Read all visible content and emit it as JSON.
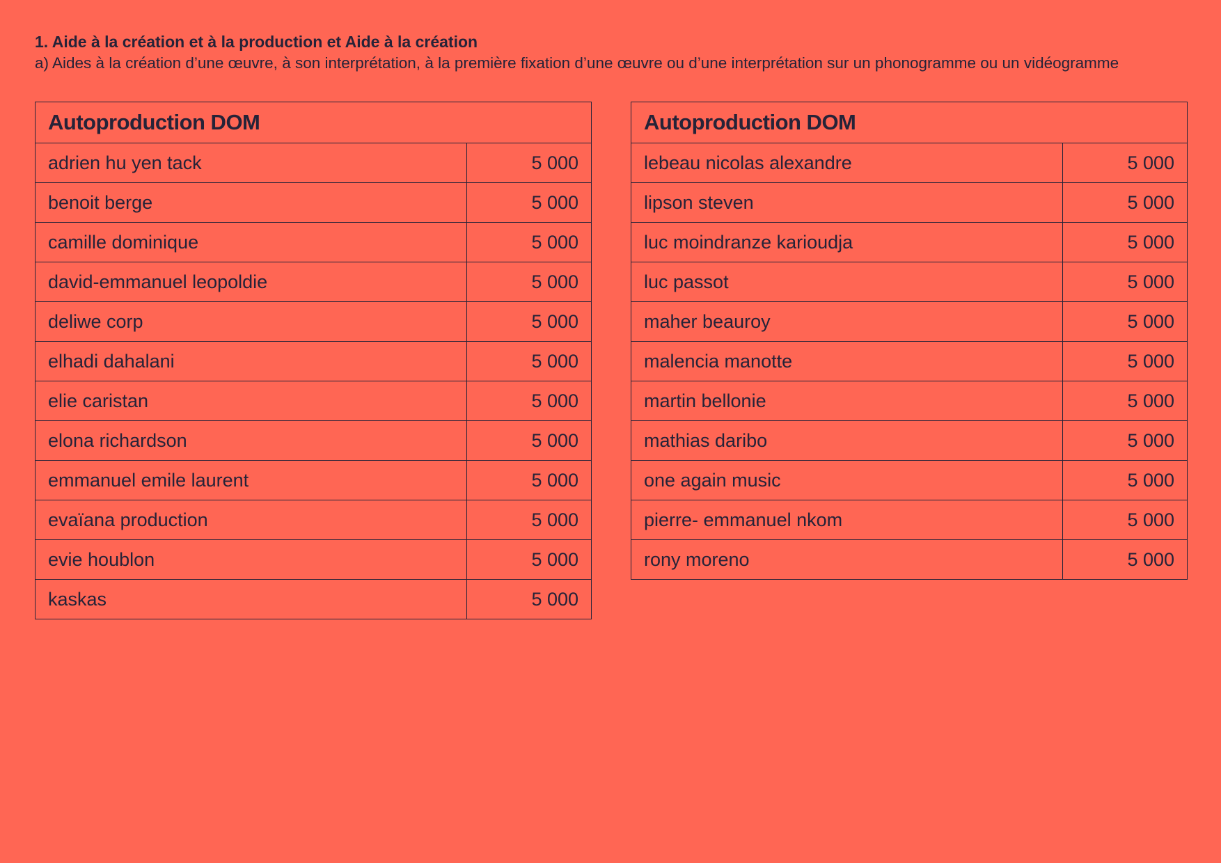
{
  "header": {
    "title": "1. Aide à la création et à la production et Aide à la création",
    "subtitle": "a) Aides à la création d’une œuvre, à son interprétation, à la première fixation d’une œuvre ou d’une interprétation sur un phonogramme ou un vidéogramme"
  },
  "tables": [
    {
      "title": "Autoproduction DOM",
      "rows": [
        {
          "name": "adrien hu yen tack",
          "amount": "5 000"
        },
        {
          "name": "benoit berge",
          "amount": "5 000"
        },
        {
          "name": "camille dominique",
          "amount": "5 000"
        },
        {
          "name": "david-emmanuel leopoldie",
          "amount": "5 000"
        },
        {
          "name": "deliwe corp",
          "amount": "5 000"
        },
        {
          "name": "elhadi dahalani",
          "amount": "5 000"
        },
        {
          "name": "elie caristan",
          "amount": "5 000"
        },
        {
          "name": "elona richardson",
          "amount": "5 000"
        },
        {
          "name": "emmanuel emile laurent",
          "amount": "5 000"
        },
        {
          "name": "evaïana production",
          "amount": "5 000"
        },
        {
          "name": "evie houblon",
          "amount": "5 000"
        },
        {
          "name": "kaskas",
          "amount": "5 000"
        }
      ]
    },
    {
      "title": "Autoproduction DOM",
      "rows": [
        {
          "name": "lebeau nicolas alexandre",
          "amount": "5 000"
        },
        {
          "name": "lipson steven",
          "amount": "5 000"
        },
        {
          "name": "luc moindranze karioudja",
          "amount": "5 000"
        },
        {
          "name": "luc passot",
          "amount": "5 000"
        },
        {
          "name": "maher beauroy",
          "amount": "5 000"
        },
        {
          "name": "malencia manotte",
          "amount": "5 000"
        },
        {
          "name": "martin bellonie",
          "amount": "5 000"
        },
        {
          "name": "mathias daribo",
          "amount": "5 000"
        },
        {
          "name": "one again music",
          "amount": "5 000"
        },
        {
          "name": "pierre- emmanuel nkom",
          "amount": "5 000"
        },
        {
          "name": "rony moreno",
          "amount": "5 000"
        }
      ]
    }
  ],
  "colors": {
    "background": "#ff6654",
    "text": "#262338"
  }
}
